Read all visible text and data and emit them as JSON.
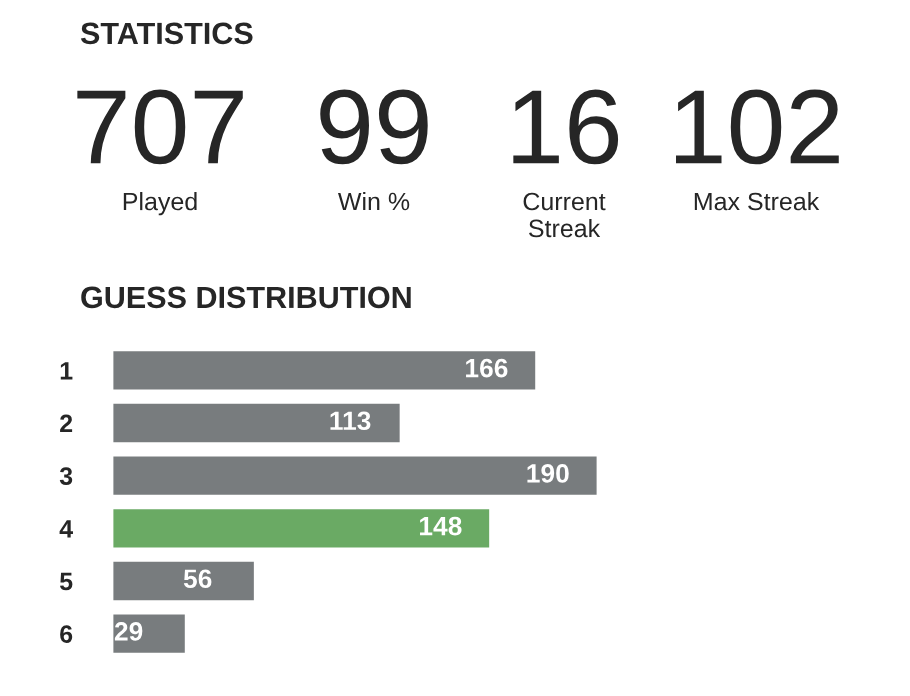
{
  "chart_data": [
    {
      "type": "other",
      "title": "STATISTICS",
      "annotations": [
        "707",
        "Played",
        "99",
        "Win %",
        "16",
        "Current\nStreak",
        "102",
        "Max Streak"
      ]
    },
    {
      "type": "bar",
      "orientation": "horizontal",
      "title": "GUESS DISTRIBUTION",
      "categories": [
        "1",
        "2",
        "3",
        "4",
        "5",
        "6"
      ],
      "values": [
        166,
        113,
        190,
        148,
        56,
        29
      ],
      "colors": [
        "#787c7e",
        "#787c7e",
        "#787c7e",
        "#6aaa64",
        "#787c7e",
        "#787c7e"
      ],
      "data_labels": true
    }
  ]
}
